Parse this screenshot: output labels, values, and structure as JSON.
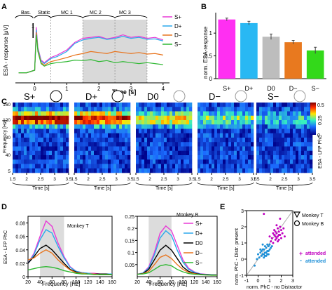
{
  "panels": {
    "A": {
      "letter": "A",
      "ylabel": "ESA - response [μV]",
      "xlabel": "Time [s]",
      "epochs": [
        "Bas.",
        "Static",
        "MC 1",
        "MC 2",
        "MC 3"
      ],
      "scalebar_label": "1",
      "legend": [
        "S+",
        "D+",
        "D−",
        "S−"
      ]
    },
    "B": {
      "letter": "B",
      "ylabel": "norm. ESA-response",
      "categories": [
        "S+",
        "D+",
        "D0",
        "D−",
        "S−"
      ]
    },
    "C": {
      "letter": "C",
      "ylabel": "Frequency [Hz]",
      "conditions": [
        "S+",
        "D+",
        "D0",
        "D−",
        "S−"
      ],
      "time_label": "Time [s]",
      "colorbar_title": "ESA - LFP PhC",
      "colorbar_ticks": [
        "0.5",
        "0.25",
        "0"
      ]
    },
    "D": {
      "letter": "D",
      "ylabel": "ESA - LFP PhC",
      "xlabel": "Frequency [Hz]",
      "left_title": "Monkey T",
      "right_title": "Monkey B",
      "legend": [
        "S+",
        "D+",
        "D0",
        "D−",
        "S−"
      ]
    },
    "E": {
      "letter": "E",
      "ylabel": "norm. PhC - Distr. present",
      "xlabel": "norm. PhC - no Distractor",
      "legend_shapes": [
        "Monkey T",
        "Monkey B"
      ],
      "legend_colors": [
        "attended",
        "attended"
      ]
    }
  },
  "colors": {
    "S+": "#e83ad6",
    "D+": "#2aa9ec",
    "D0": "#000000",
    "D−": "#e8731c",
    "S−": "#2eb832",
    "bars": [
      "#ff2ff2",
      "#29b8f3",
      "#bdbdbd",
      "#e8791f",
      "#33d91a"
    ]
  },
  "chart_data": [
    {
      "panel": "A",
      "type": "line",
      "xlabel": "Time [s]",
      "ylabel": "ESA - response [μV]",
      "xlim": [
        -0.6,
        4.2
      ],
      "ylim": [
        0,
        1.25
      ],
      "xticks": [
        0,
        1,
        2,
        3,
        4
      ],
      "x": [
        -0.5,
        -0.25,
        0,
        0.05,
        0.1,
        0.2,
        0.3,
        0.5,
        0.7,
        1.0,
        1.25,
        1.5,
        1.75,
        2.0,
        2.25,
        2.5,
        2.75,
        3.0,
        3.25,
        3.5,
        3.75,
        4.0
      ],
      "series": [
        {
          "name": "S+",
          "values": [
            0.2,
            0.2,
            0.25,
            1.1,
            0.7,
            0.45,
            0.4,
            0.5,
            0.55,
            0.65,
            0.8,
            0.88,
            0.9,
            0.92,
            0.87,
            0.9,
            0.95,
            0.9,
            0.92,
            0.88,
            0.9,
            0.85
          ]
        },
        {
          "name": "D+",
          "values": [
            0.2,
            0.2,
            0.25,
            1.05,
            0.68,
            0.43,
            0.38,
            0.48,
            0.52,
            0.62,
            0.78,
            0.85,
            0.88,
            0.9,
            0.86,
            0.88,
            0.92,
            0.88,
            0.9,
            0.86,
            0.87,
            0.83
          ]
        },
        {
          "name": "D−",
          "values": [
            0.2,
            0.2,
            0.25,
            1.0,
            0.65,
            0.4,
            0.35,
            0.42,
            0.45,
            0.5,
            0.55,
            0.58,
            0.62,
            0.6,
            0.58,
            0.62,
            0.6,
            0.58,
            0.6,
            0.57,
            0.58,
            0.55
          ]
        },
        {
          "name": "S−",
          "values": [
            0.2,
            0.2,
            0.25,
            0.95,
            0.62,
            0.38,
            0.33,
            0.38,
            0.4,
            0.42,
            0.45,
            0.44,
            0.46,
            0.42,
            0.44,
            0.4,
            0.42,
            0.4,
            0.38,
            0.4,
            0.38,
            0.36
          ]
        }
      ]
    },
    {
      "panel": "B",
      "type": "bar",
      "ylabel": "norm. ESA-response",
      "categories": [
        "S+",
        "D+",
        "D0",
        "D−",
        "S−"
      ],
      "values": [
        1.3,
        1.22,
        0.92,
        0.8,
        0.62
      ],
      "errors": [
        0.03,
        0.04,
        0.06,
        0.04,
        0.07
      ],
      "ylim": [
        0,
        1.45
      ],
      "yticks": [
        0,
        0.5,
        1
      ]
    },
    {
      "panel": "C",
      "type": "heatmap",
      "ylabel": "Frequency [Hz]",
      "yticks": [
        5,
        20,
        40,
        60,
        80,
        100,
        120,
        140,
        160
      ],
      "xticks": [
        1.5,
        2.0,
        2.5,
        3.0,
        3.5
      ],
      "conditions": [
        "S+",
        "D+",
        "D0",
        "D−",
        "S−"
      ],
      "band_strength": [
        1.0,
        0.92,
        0.62,
        0.42,
        0.28
      ],
      "colorbar": [
        0,
        0.25,
        0.5
      ]
    },
    {
      "panel": "D-left",
      "type": "line",
      "title": "Monkey T",
      "xlabel": "Frequency [Hz]",
      "ylabel": "ESA - LFP PhC",
      "xlim": [
        20,
        160
      ],
      "ylim": [
        0,
        0.09
      ],
      "xticks": [
        20,
        40,
        60,
        80,
        100,
        120,
        140,
        160
      ],
      "yticks": [
        0,
        0.02,
        0.04,
        0.06,
        0.08
      ],
      "x": [
        20,
        30,
        40,
        50,
        60,
        70,
        80,
        90,
        100,
        110,
        120,
        130,
        140,
        150,
        160
      ],
      "series": [
        {
          "name": "S+",
          "values": [
            0.02,
            0.035,
            0.06,
            0.083,
            0.075,
            0.05,
            0.03,
            0.015,
            0.008,
            0.006,
            0.005,
            0.005,
            0.004,
            0.004,
            0.004
          ]
        },
        {
          "name": "D+",
          "values": [
            0.02,
            0.033,
            0.055,
            0.07,
            0.065,
            0.045,
            0.028,
            0.014,
            0.008,
            0.006,
            0.005,
            0.004,
            0.004,
            0.004,
            0.004
          ]
        },
        {
          "name": "D0",
          "values": [
            0.02,
            0.03,
            0.042,
            0.047,
            0.04,
            0.03,
            0.02,
            0.011,
            0.007,
            0.005,
            0.004,
            0.004,
            0.004,
            0.004,
            0.003
          ]
        },
        {
          "name": "D−",
          "values": [
            0.025,
            0.028,
            0.035,
            0.04,
            0.035,
            0.025,
            0.017,
            0.01,
            0.006,
            0.005,
            0.004,
            0.004,
            0.003,
            0.003,
            0.003
          ]
        },
        {
          "name": "S−",
          "values": [
            0.01,
            0.012,
            0.014,
            0.015,
            0.014,
            0.012,
            0.009,
            0.007,
            0.005,
            0.004,
            0.004,
            0.003,
            0.003,
            0.003,
            0.003
          ]
        }
      ]
    },
    {
      "panel": "D-right",
      "type": "line",
      "title": "Monkey B",
      "xlabel": "Frequency [Hz]",
      "xlim": [
        20,
        160
      ],
      "ylim": [
        0,
        0.25
      ],
      "xticks": [
        20,
        40,
        60,
        80,
        100,
        120,
        140,
        160
      ],
      "yticks": [
        0.05,
        0.1,
        0.15,
        0.2,
        0.25
      ],
      "x": [
        20,
        30,
        40,
        50,
        60,
        70,
        80,
        90,
        100,
        110,
        120,
        130,
        140,
        150,
        160
      ],
      "series": [
        {
          "name": "S+",
          "values": [
            0.01,
            0.015,
            0.04,
            0.1,
            0.18,
            0.21,
            0.19,
            0.13,
            0.07,
            0.035,
            0.02,
            0.012,
            0.01,
            0.008,
            0.008
          ]
        },
        {
          "name": "D+",
          "values": [
            0.01,
            0.015,
            0.035,
            0.09,
            0.16,
            0.19,
            0.17,
            0.11,
            0.06,
            0.03,
            0.018,
            0.011,
            0.009,
            0.008,
            0.007
          ]
        },
        {
          "name": "D0",
          "values": [
            0.01,
            0.013,
            0.03,
            0.07,
            0.11,
            0.13,
            0.11,
            0.075,
            0.04,
            0.022,
            0.014,
            0.01,
            0.008,
            0.007,
            0.007
          ]
        },
        {
          "name": "D−",
          "values": [
            0.01,
            0.012,
            0.022,
            0.05,
            0.08,
            0.09,
            0.075,
            0.05,
            0.03,
            0.018,
            0.012,
            0.009,
            0.007,
            0.006,
            0.006
          ]
        },
        {
          "name": "S−",
          "values": [
            0.01,
            0.011,
            0.016,
            0.03,
            0.045,
            0.05,
            0.045,
            0.03,
            0.02,
            0.013,
            0.01,
            0.008,
            0.007,
            0.006,
            0.006
          ]
        }
      ]
    },
    {
      "panel": "E",
      "type": "scatter",
      "xlabel": "norm. PhC - no Distractor",
      "ylabel": "norm. PhC - Distr. present",
      "xlim": [
        -1,
        3
      ],
      "ylim": [
        -1,
        3
      ],
      "xticks": [
        -1,
        0,
        1,
        2,
        3
      ],
      "yticks": [
        -1,
        0,
        1,
        2,
        3
      ],
      "series": [
        {
          "name": "attended",
          "color": "#c000c0",
          "points": [
            [
              1.2,
              1.3
            ],
            [
              1.4,
              1.5
            ],
            [
              1.5,
              1.2
            ],
            [
              1.6,
              1.6
            ],
            [
              1.7,
              1.4
            ],
            [
              1.8,
              1.7
            ],
            [
              1.9,
              1.5
            ],
            [
              2.0,
              1.8
            ],
            [
              1.3,
              1.0
            ],
            [
              1.5,
              1.7
            ],
            [
              1.6,
              1.3
            ],
            [
              1.7,
              1.9
            ],
            [
              1.8,
              1.2
            ],
            [
              1.9,
              2.0
            ],
            [
              2.1,
              1.6
            ],
            [
              1.1,
              1.1
            ],
            [
              1.4,
              1.8
            ],
            [
              1.6,
              2.1
            ],
            [
              1.7,
              1.1
            ],
            [
              2.2,
              1.9
            ],
            [
              1.0,
              1.4
            ],
            [
              1.3,
              1.6
            ],
            [
              1.5,
              1.4
            ],
            [
              1.8,
              1.5
            ],
            [
              2.0,
              1.3
            ],
            [
              0.5,
              2.8
            ],
            [
              1.9,
              2.5
            ],
            [
              2.3,
              1.4
            ]
          ]
        },
        {
          "name": "unattended",
          "color": "#1e90d8",
          "points": [
            [
              0.2,
              0.4
            ],
            [
              0.4,
              0.3
            ],
            [
              0.5,
              0.6
            ],
            [
              0.6,
              0.4
            ],
            [
              0.7,
              0.7
            ],
            [
              0.8,
              0.5
            ],
            [
              0.9,
              0.8
            ],
            [
              1.0,
              0.6
            ],
            [
              0.3,
              0.2
            ],
            [
              0.5,
              0.3
            ],
            [
              0.6,
              0.8
            ],
            [
              0.7,
              0.4
            ],
            [
              0.8,
              0.9
            ],
            [
              0.9,
              0.5
            ],
            [
              1.1,
              0.7
            ],
            [
              0.1,
              0.1
            ],
            [
              0.4,
              0.6
            ],
            [
              0.6,
              0.2
            ],
            [
              0.8,
              0.3
            ],
            [
              1.0,
              0.9
            ],
            [
              0.2,
              0.6
            ],
            [
              0.3,
              0.5
            ],
            [
              0.5,
              0.1
            ],
            [
              0.7,
              0.2
            ],
            [
              0.9,
              0.3
            ],
            [
              -0.3,
              -0.4
            ],
            [
              -0.1,
              0.0
            ],
            [
              0.0,
              0.3
            ],
            [
              1.2,
              0.8
            ],
            [
              0.4,
              0.9
            ]
          ]
        }
      ]
    }
  ]
}
